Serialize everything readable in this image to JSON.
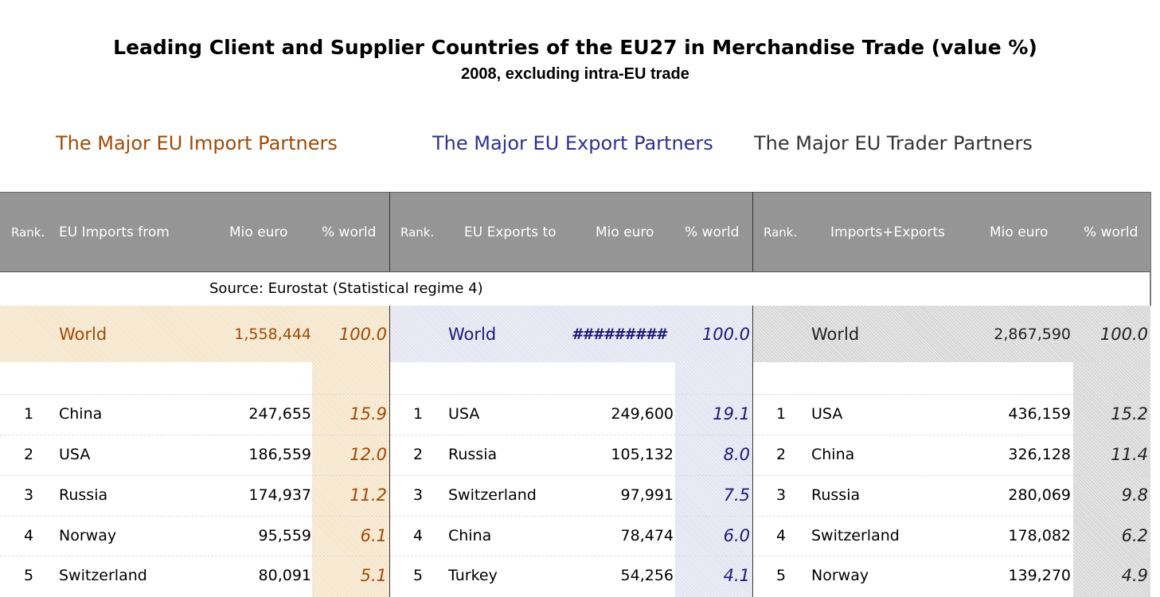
{
  "title": "Leading Client and Supplier Countries of the EU27 in Merchandise Trade (value %)",
  "subtitle": "2008, excluding intra-EU trade",
  "sections": {
    "imports": "The Major EU Import Partners",
    "exports": "The Major EU Export Partners",
    "traders": "The Major EU Trader Partners"
  },
  "headers": {
    "imports": {
      "rank": "Rank.",
      "partner": "EU Imports from",
      "mio": "Mio euro",
      "pct": "% world"
    },
    "exports": {
      "rank": "Rank.",
      "partner": "EU Exports to",
      "mio": "Mio euro",
      "pct": "% world"
    },
    "traders": {
      "rank": "Rank.",
      "partner": "Imports+Exports",
      "mio": "Mio euro",
      "pct": "% world"
    }
  },
  "source": "Source: Eurostat (Statistical regime 4)",
  "world": {
    "imports": {
      "label": "World",
      "mio": "1,558,444",
      "pct": "100.0"
    },
    "exports": {
      "label": "World",
      "mio": "#########",
      "pct": "100.0"
    },
    "traders": {
      "label": "World",
      "mio": "2,867,590",
      "pct": "100.0"
    }
  },
  "rows": [
    {
      "imports": {
        "rank": "1",
        "country": "China",
        "mio": "247,655",
        "pct": "15.9"
      },
      "exports": {
        "rank": "1",
        "country": "USA",
        "mio": "249,600",
        "pct": "19.1"
      },
      "traders": {
        "rank": "1",
        "country": "USA",
        "mio": "436,159",
        "pct": "15.2"
      }
    },
    {
      "imports": {
        "rank": "2",
        "country": "USA",
        "mio": "186,559",
        "pct": "12.0"
      },
      "exports": {
        "rank": "2",
        "country": "Russia",
        "mio": "105,132",
        "pct": "8.0"
      },
      "traders": {
        "rank": "2",
        "country": "China",
        "mio": "326,128",
        "pct": "11.4"
      }
    },
    {
      "imports": {
        "rank": "3",
        "country": "Russia",
        "mio": "174,937",
        "pct": "11.2"
      },
      "exports": {
        "rank": "3",
        "country": "Switzerland",
        "mio": "97,991",
        "pct": "7.5"
      },
      "traders": {
        "rank": "3",
        "country": "Russia",
        "mio": "280,069",
        "pct": "9.8"
      }
    },
    {
      "imports": {
        "rank": "4",
        "country": "Norway",
        "mio": "95,559",
        "pct": "6.1"
      },
      "exports": {
        "rank": "4",
        "country": "China",
        "mio": "78,474",
        "pct": "6.0"
      },
      "traders": {
        "rank": "4",
        "country": "Switzerland",
        "mio": "178,082",
        "pct": "6.2"
      }
    },
    {
      "imports": {
        "rank": "5",
        "country": "Switzerland",
        "mio": "80,091",
        "pct": "5.1"
      },
      "exports": {
        "rank": "5",
        "country": "Turkey",
        "mio": "54,256",
        "pct": "4.1"
      },
      "traders": {
        "rank": "5",
        "country": "Norway",
        "mio": "139,270",
        "pct": "4.9"
      }
    }
  ]
}
